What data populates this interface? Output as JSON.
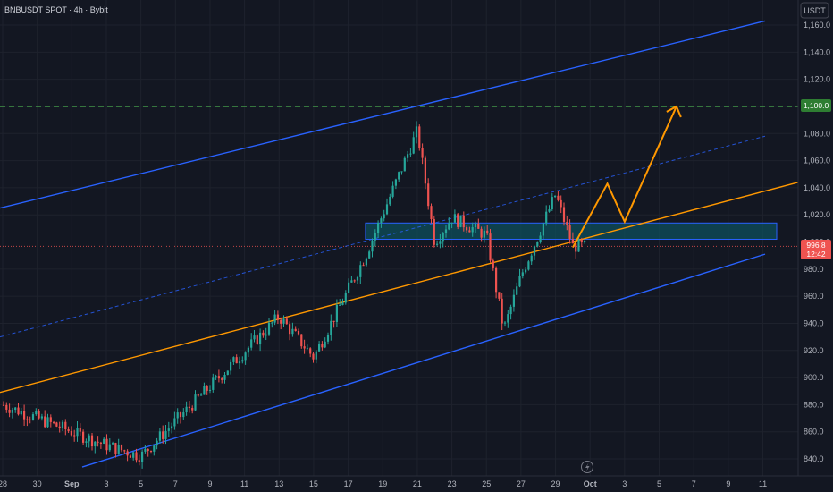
{
  "header": {
    "symbol_title": "BNBUSDT SPOT · 4h · Bybit"
  },
  "currency_button": {
    "label": "USDT"
  },
  "price_labels": {
    "target": "1,100.0",
    "current": "996.8",
    "countdown": "12:42"
  },
  "colors": {
    "background": "#131722",
    "grid": "#1e222d",
    "up": "#26a69a",
    "down": "#ef5350",
    "channel": "#2962ff",
    "trend": "#ff9800",
    "target": "#4caf50",
    "zone_fill": "#0e4f5c",
    "zone_border": "#2962ff"
  },
  "icons": {
    "timezone": "lightning-icon"
  },
  "chart_data": {
    "type": "candlestick",
    "title": "BNBUSDT SPOT · 4h · Bybit",
    "y_axis": {
      "side": "right",
      "currency": "USDT",
      "ylim": [
        834,
        1167
      ],
      "ticks": [
        "1,160.0",
        "1,140.0",
        "1,120.0",
        "1,100.0",
        "1,080.0",
        "1,060.0",
        "1,040.0",
        "1,020.0",
        "1,000.0",
        "980.0",
        "960.0",
        "940.0",
        "920.0",
        "900.0",
        "880.0",
        "860.0",
        "840.0"
      ]
    },
    "x_axis": {
      "ticks": [
        "28",
        "30",
        "Sep",
        "3",
        "5",
        "7",
        "9",
        "11",
        "13",
        "15",
        "17",
        "19",
        "21",
        "23",
        "25",
        "27",
        "29",
        "Oct",
        "3",
        "5",
        "7",
        "9",
        "11"
      ]
    },
    "grid": true,
    "key_points": [
      {
        "date": "Aug 28",
        "price": 880
      },
      {
        "date": "Sep 3",
        "price": 850
      },
      {
        "date": "Sep 5",
        "price": 842
      },
      {
        "date": "Sep 13",
        "price": 945
      },
      {
        "date": "Sep 15",
        "price": 915
      },
      {
        "date": "Sep 18",
        "price": 990
      },
      {
        "date": "Sep 21",
        "price": 1082
      },
      {
        "date": "Sep 22",
        "price": 1000
      },
      {
        "date": "Sep 23",
        "price": 1018
      },
      {
        "date": "Sep 25",
        "price": 1005
      },
      {
        "date": "Sep 26",
        "price": 935
      },
      {
        "date": "Sep 27",
        "price": 975
      },
      {
        "date": "Sep 29",
        "price": 1035
      },
      {
        "date": "Sep 30",
        "price": 996.8
      }
    ],
    "current_price": 996.8,
    "annotations": {
      "channel_upper": [
        {
          "date": "Aug 28",
          "price": 1025
        },
        {
          "date": "Oct 11",
          "price": 1163
        }
      ],
      "channel_lower": [
        {
          "date": "Sep 1",
          "price": 834
        },
        {
          "date": "Oct 11",
          "price": 991
        }
      ],
      "channel_mid": [
        {
          "date": "Aug 28",
          "price": 930
        },
        {
          "date": "Oct 11",
          "price": 1078
        }
      ],
      "trendline": [
        {
          "date": "Aug 28",
          "price": 889
        },
        {
          "date": "Oct 12",
          "price": 1044
        }
      ],
      "zone": {
        "from_date": "Sep 18",
        "to_date": "Oct 11",
        "top": 1014,
        "bottom": 1002
      },
      "target_line": 1100,
      "projection": [
        {
          "date": "Sep 30",
          "price": 996
        },
        {
          "date": "Oct 2",
          "price": 1043
        },
        {
          "date": "Oct 3",
          "price": 1015
        },
        {
          "date": "Oct 6",
          "price": 1100
        }
      ]
    }
  }
}
